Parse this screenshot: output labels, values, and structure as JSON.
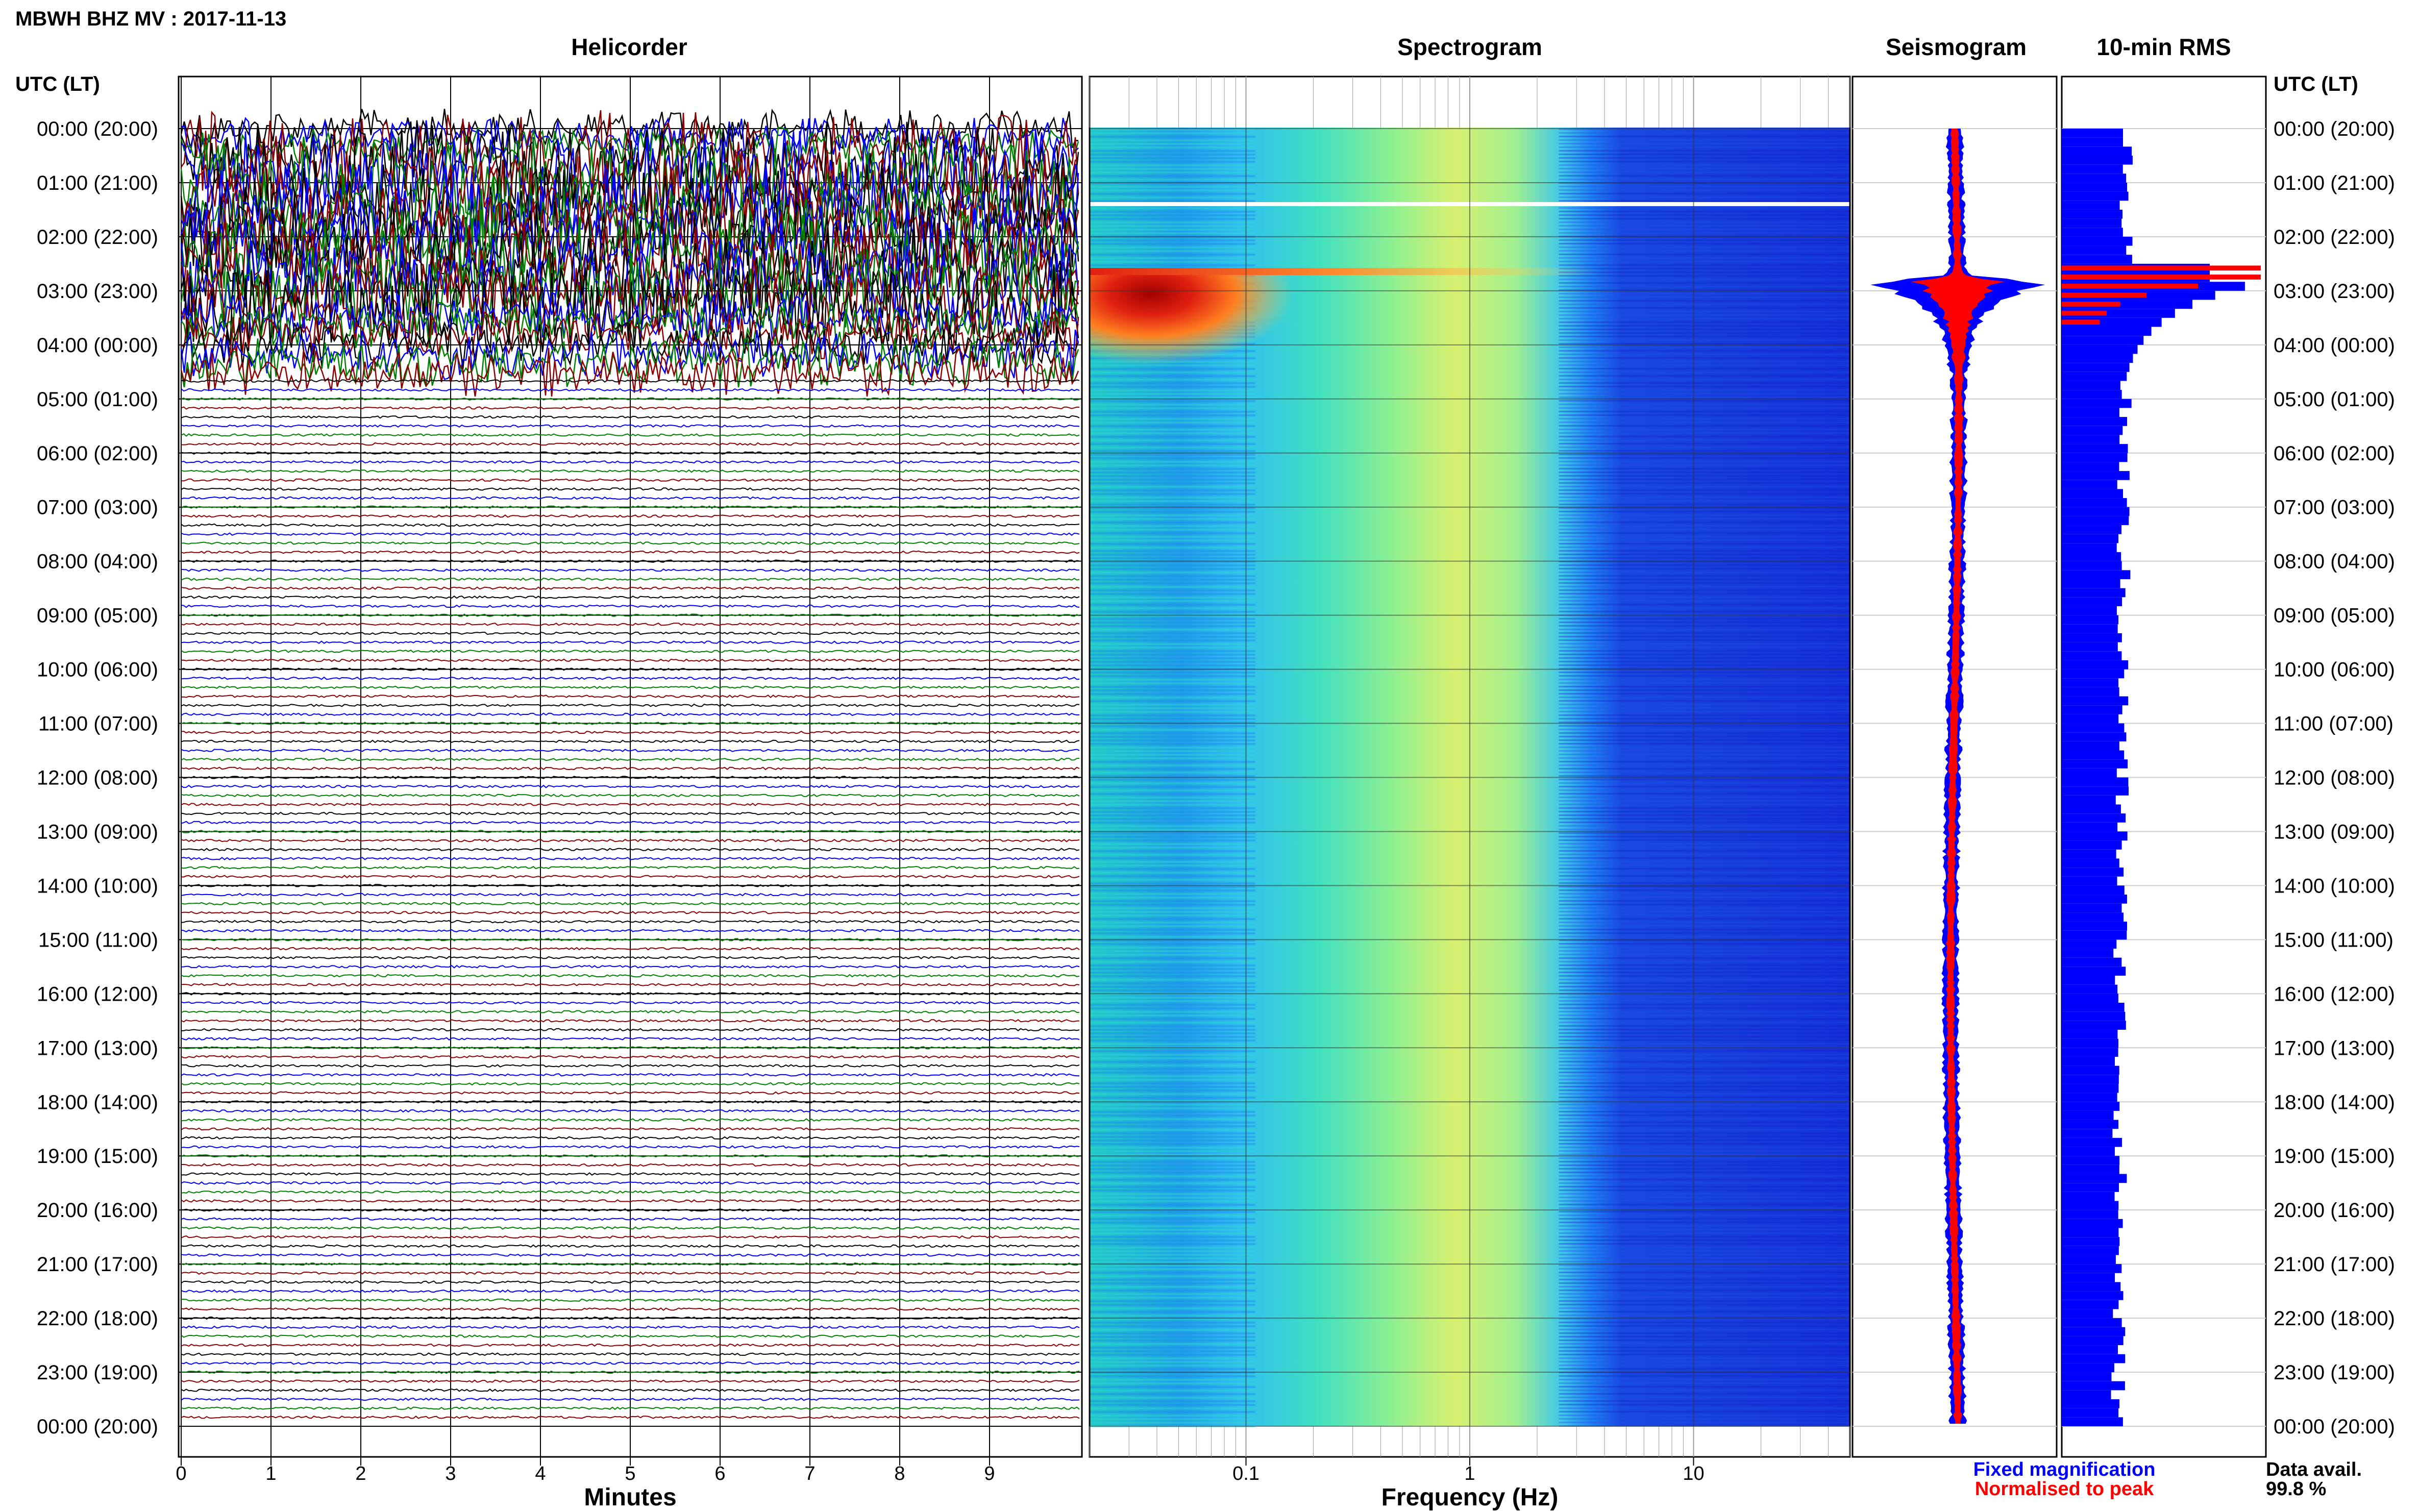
{
  "header": {
    "station_title": "MBWH BHZ MV : 2017-11-13",
    "utc_label_left": "UTC (LT)",
    "utc_label_right": "UTC (LT)"
  },
  "panels": {
    "helicorder": "Helicorder",
    "spectrogram": "Spectrogram",
    "seismogram": "Seismogram",
    "rms": "10-min RMS"
  },
  "time_labels": [
    "00:00 (20:00)",
    "01:00 (21:00)",
    "02:00 (22:00)",
    "03:00 (23:00)",
    "04:00 (00:00)",
    "05:00 (01:00)",
    "06:00 (02:00)",
    "07:00 (03:00)",
    "08:00 (04:00)",
    "09:00 (05:00)",
    "10:00 (06:00)",
    "11:00 (07:00)",
    "12:00 (08:00)",
    "13:00 (09:00)",
    "14:00 (10:00)",
    "15:00 (11:00)",
    "16:00 (12:00)",
    "17:00 (13:00)",
    "18:00 (14:00)",
    "19:00 (15:00)",
    "20:00 (16:00)",
    "21:00 (17:00)",
    "22:00 (18:00)",
    "23:00 (19:00)",
    "00:00 (20:00)"
  ],
  "legend": {
    "fixed": "Fixed magnification",
    "normalised": "Normalised to peak",
    "fixed_color": "#0000ff",
    "normalised_color": "#ff0000",
    "data_avail_label": "Data avail.",
    "data_avail_value": "99.8 %"
  },
  "chart_data": [
    {
      "type": "line",
      "panel": "helicorder",
      "xlabel": "Minutes",
      "ylabel": "",
      "x_ticks": [
        "0",
        "1",
        "2",
        "3",
        "4",
        "5",
        "6",
        "7",
        "8",
        "9"
      ],
      "xlim": [
        0,
        10
      ],
      "ylim_hours": [
        0,
        24
      ],
      "traces_per_hour": 6,
      "trace_colors": [
        "#000000",
        "#0000ff",
        "#008000",
        "#8b0000"
      ],
      "active_period_hours": [
        0.0,
        4.5
      ],
      "grid": true
    },
    {
      "type": "heatmap",
      "panel": "spectrogram",
      "xlabel": "Frequency (Hz)",
      "ylabel": "",
      "x_scale": "log",
      "xlim": [
        0.02,
        50
      ],
      "x_ticks": [
        "0.1",
        "1",
        "10"
      ],
      "ylim_hours": [
        0,
        24
      ],
      "event_time_hours": 2.65,
      "gap_time_hours": 1.4,
      "grid": true
    },
    {
      "type": "line",
      "panel": "seismogram",
      "series": [
        {
          "name": "Fixed magnification",
          "color": "#0000ff"
        },
        {
          "name": "Normalised to peak",
          "color": "#ff0000"
        }
      ],
      "ylim_hours": [
        0,
        24
      ],
      "event_time_hours": 2.8
    },
    {
      "type": "bar",
      "panel": "rms",
      "orientation": "horizontal",
      "ylim_hours": [
        0,
        24
      ],
      "bin_minutes": 10,
      "event_time_hours": 2.8,
      "series": [
        {
          "name": "Fixed magnification",
          "color": "#0000ff"
        },
        {
          "name": "Normalised to peak",
          "color": "#ff0000"
        }
      ]
    }
  ]
}
